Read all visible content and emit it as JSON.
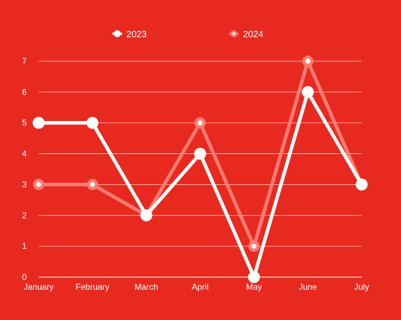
{
  "chart_data": {
    "type": "line",
    "title": "",
    "xlabel": "",
    "ylabel": "",
    "categories": [
      "January",
      "February",
      "March",
      "April",
      "May",
      "June",
      "July"
    ],
    "ylim": [
      0,
      7
    ],
    "yticks": [
      "0",
      "1",
      "2",
      "3",
      "4",
      "5",
      "6",
      "7"
    ],
    "grid": true,
    "legend_position": "top-center",
    "background_color": "#e8291f",
    "series": [
      {
        "name": "2023",
        "values": [
          5,
          5,
          2,
          4,
          0,
          6,
          3
        ],
        "color": "#ffffff",
        "marker_center": "#ffffff"
      },
      {
        "name": "2024",
        "values": [
          3,
          3,
          2,
          5,
          1,
          7,
          3
        ],
        "color": "#ff7b72",
        "marker_center": "#ffffff"
      }
    ]
  }
}
